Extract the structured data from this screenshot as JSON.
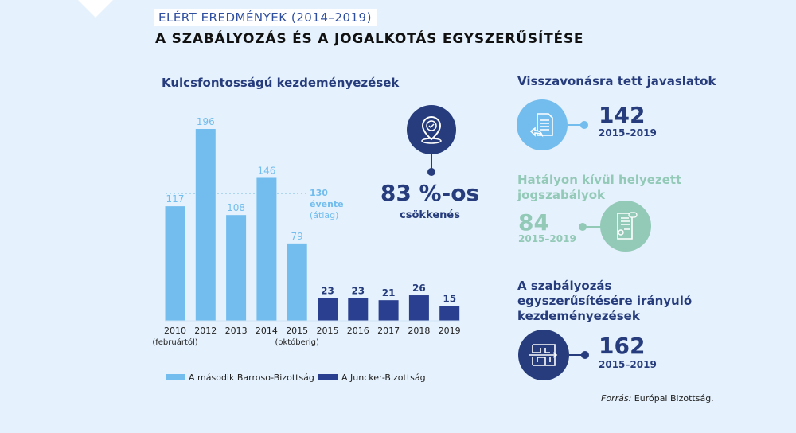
{
  "header": {
    "tag": "ELÉRT EREDMÉNYEK (2014–2019)",
    "title": "A SZABÁLYOZÁS ÉS A JOGALKOTÁS EGYSZERŰSÍTÉSE"
  },
  "chart_data": {
    "type": "bar",
    "title": "Kulcsfontosságú kezdeményezések",
    "categories": [
      "2010",
      "2012",
      "2013",
      "2014",
      "2015",
      "2015",
      "2016",
      "2017",
      "2018",
      "2019"
    ],
    "category_sublabels": [
      "(februártól)",
      "",
      "",
      "",
      "(októberig)",
      "",
      "",
      "",
      "",
      ""
    ],
    "values": [
      117,
      196,
      108,
      146,
      79,
      23,
      23,
      21,
      26,
      15
    ],
    "series_of_bar": [
      0,
      0,
      0,
      0,
      0,
      1,
      1,
      1,
      1,
      1
    ],
    "series": [
      {
        "name": "A második Barroso-Bizottság",
        "color": "#72bdee"
      },
      {
        "name": "A Juncker-Bizottság",
        "color": "#2a3f8f"
      }
    ],
    "reference_line": {
      "value": 130,
      "labels": [
        "130",
        "évente",
        "(átlag)"
      ]
    },
    "ylim": [
      0,
      200
    ],
    "grid": false,
    "legend": "bottom"
  },
  "reduction": {
    "value": "83 %-os",
    "label": "csökkenés",
    "icon": "location-pin-check-icon"
  },
  "stats": [
    {
      "title": "Visszavonásra tett javaslatok",
      "value": "142",
      "period": "2015–2019",
      "color": "#72bdee",
      "icon": "document-return-icon"
    },
    {
      "title": "Hatályon kívül helyezett jogszabályok",
      "value": "84",
      "period": "2015–2019",
      "color": "#93c9b7",
      "icon": "certificate-delete-icon"
    },
    {
      "title": "A szabályozás egyszerűsítésére irányuló kezdeményezések",
      "value": "162",
      "period": "2015–2019",
      "color": "#263c7c",
      "icon": "maze-icon"
    }
  ],
  "source": {
    "label": "Forrás:",
    "text": " Európai Bizottság."
  }
}
